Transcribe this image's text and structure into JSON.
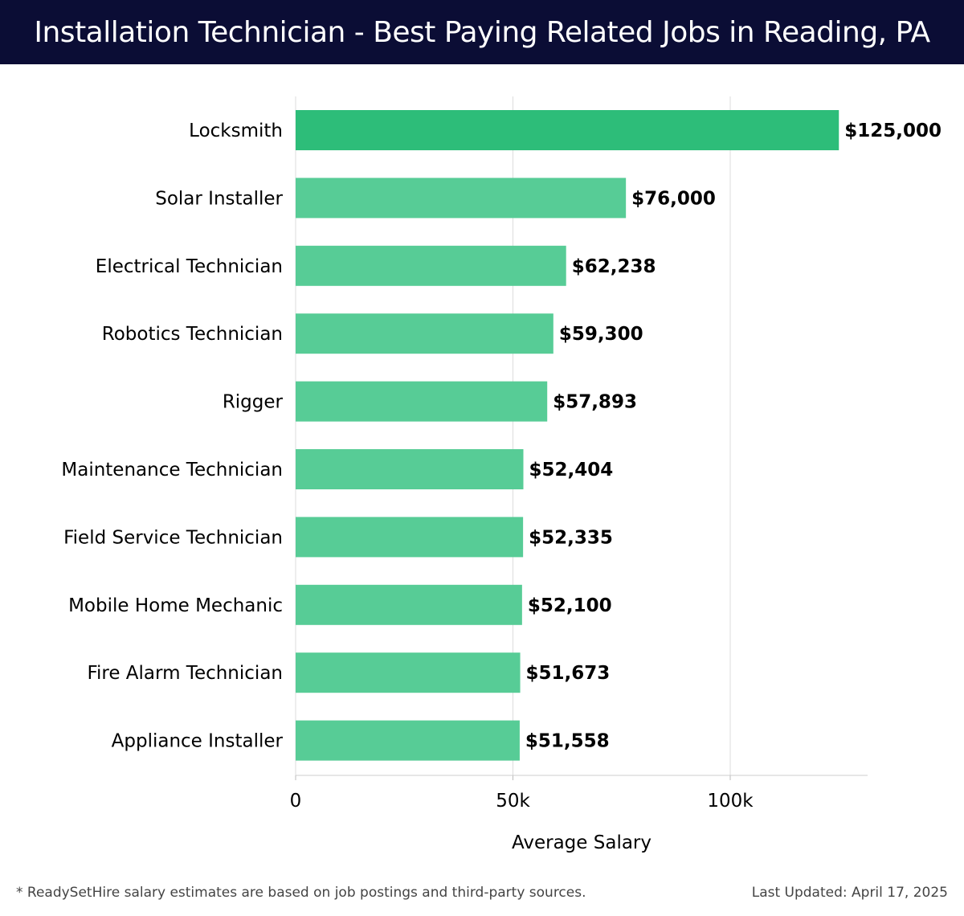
{
  "header": {
    "title": "Installation Technician - Best Paying Related Jobs in Reading, PA"
  },
  "colors": {
    "header_background": "#0b0d35",
    "highlight_bar": "#2dbd79",
    "bar": "#57cc96",
    "grid": "#dddddd",
    "text": "#000000"
  },
  "chart_data": {
    "type": "bar",
    "orientation": "horizontal",
    "categories": [
      "Locksmith",
      "Solar Installer",
      "Electrical Technician",
      "Robotics Technician",
      "Rigger",
      "Maintenance Technician",
      "Field Service Technician",
      "Mobile Home Mechanic",
      "Fire Alarm Technician",
      "Appliance Installer"
    ],
    "values": [
      125000,
      76000,
      62238,
      59300,
      57893,
      52404,
      52335,
      52100,
      51673,
      51558
    ],
    "value_labels": [
      "$125,000",
      "$76,000",
      "$62,238",
      "$59,300",
      "$57,893",
      "$52,404",
      "$52,335",
      "$52,100",
      "$51,673",
      "$51,558"
    ],
    "highlighted_index": 0,
    "xlabel": "Average Salary",
    "ylabel": "",
    "xlim": [
      0,
      131500
    ],
    "xticks": [
      0,
      50000,
      100000
    ],
    "xtick_labels": [
      "0",
      "50k",
      "100k"
    ],
    "grid": true
  },
  "footer": {
    "note": "* ReadySetHire salary estimates are based on job postings and third-party sources.",
    "updated": "Last Updated: April 17, 2025"
  }
}
